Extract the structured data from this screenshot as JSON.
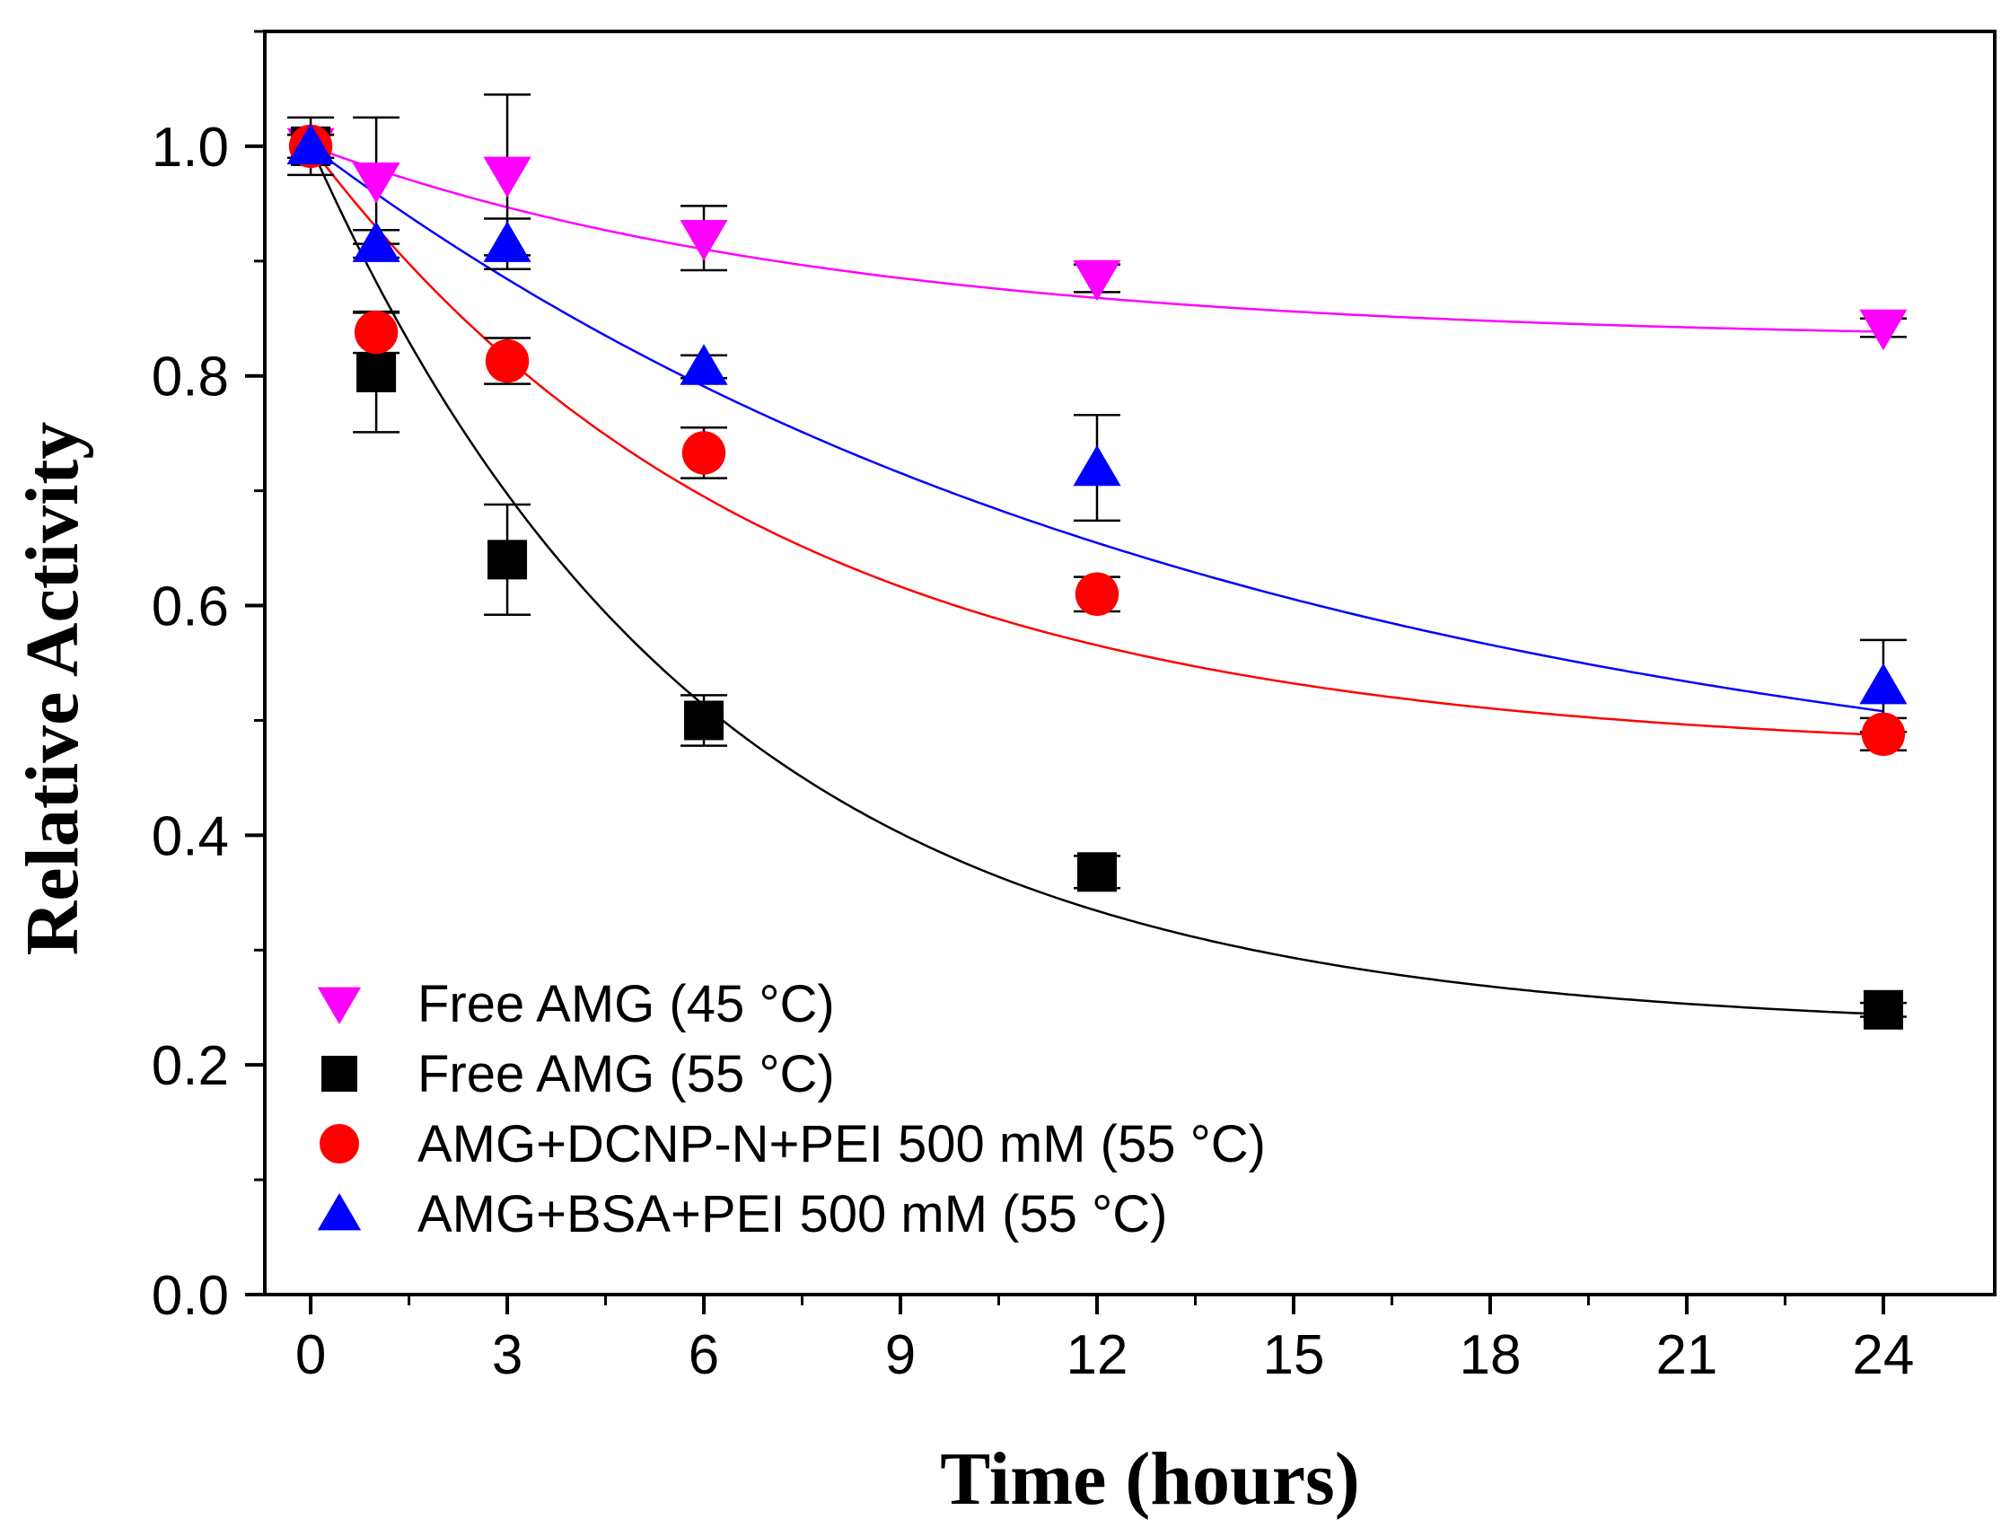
{
  "chart_data": {
    "type": "scatter",
    "title": "",
    "xlabel": "Time (hours)",
    "ylabel": "Relative Activity",
    "xlim": [
      -0.7,
      25.7
    ],
    "ylim": [
      0,
      1.1
    ],
    "xticks": [
      0,
      3,
      6,
      9,
      12,
      15,
      18,
      21,
      24
    ],
    "xtick_labels": [
      "0",
      "3",
      "6",
      "9",
      "12",
      "15",
      "18",
      "21",
      "24"
    ],
    "yticks": [
      0,
      0.2,
      0.4,
      0.6,
      0.8,
      1.0
    ],
    "ytick_labels": [
      "0.0",
      "0.2",
      "0.4",
      "0.6",
      "0.8",
      "1.0"
    ],
    "legend_position": "bottom-left",
    "series": [
      {
        "name": "Free AMG (45 °C)",
        "marker": "triangle-down",
        "color": "#ff00ff",
        "x": [
          0,
          1,
          3,
          6,
          12,
          24
        ],
        "values": [
          1.0,
          0.97,
          0.975,
          0.92,
          0.885,
          0.842
        ],
        "errors": [
          0.01,
          0.055,
          0.07,
          0.028,
          0.012,
          0.008
        ],
        "fit": {
          "y0": 0.83,
          "A": 0.17,
          "tau": 8.0
        }
      },
      {
        "name": "Free AMG (55 °C)",
        "marker": "square",
        "color": "#000000",
        "x": [
          0,
          1,
          3,
          6,
          12,
          24
        ],
        "values": [
          1.0,
          0.803,
          0.64,
          0.5,
          0.368,
          0.248
        ],
        "errors": [
          0.025,
          0.052,
          0.048,
          0.022,
          0.014,
          0.006
        ],
        "fit": {
          "y0": 0.23,
          "A": 0.77,
          "tau": 6.0
        }
      },
      {
        "name": "AMG+DCNP-N+PEI 500 mM (55 °C)",
        "marker": "circle",
        "color": "#ff0000",
        "x": [
          0,
          1,
          3,
          6,
          12,
          24
        ],
        "values": [
          1.0,
          0.838,
          0.813,
          0.733,
          0.61,
          0.488
        ],
        "errors": [
          0.01,
          0.018,
          0.02,
          0.022,
          0.015,
          0.014
        ],
        "fit": {
          "y0": 0.47,
          "A": 0.53,
          "tau": 7.0
        }
      },
      {
        "name": "AMG+BSA+PEI 500 mM (55 °C)",
        "marker": "triangle-up",
        "color": "#0000ff",
        "x": [
          0,
          1,
          3,
          6,
          12,
          24
        ],
        "values": [
          1.0,
          0.915,
          0.915,
          0.808,
          0.72,
          0.53
        ],
        "errors": [
          0.01,
          0.012,
          0.022,
          0.01,
          0.046,
          0.04
        ],
        "fit": {
          "y0": 0.4,
          "A": 0.6,
          "tau": 14.0
        }
      }
    ]
  }
}
